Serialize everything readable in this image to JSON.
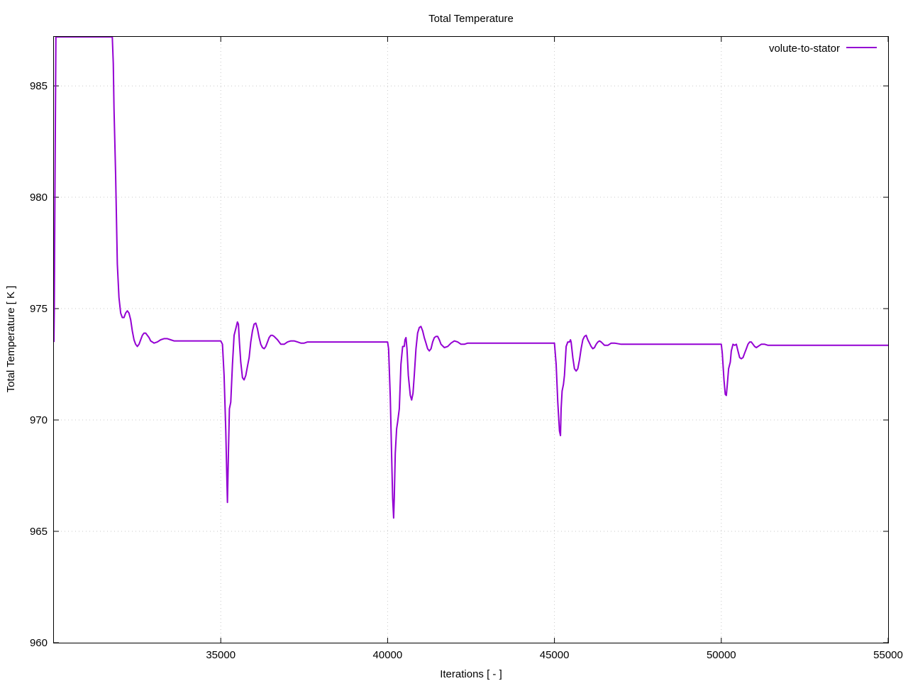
{
  "chart_data": {
    "type": "line",
    "title": "Total Temperature",
    "xlabel": "Iterations [ - ]",
    "ylabel": "Total Temperature [ K ]",
    "xlim": [
      30000,
      55000
    ],
    "ylim": [
      960,
      987.2
    ],
    "x_ticks": [
      35000,
      40000,
      45000,
      50000,
      55000
    ],
    "y_ticks": [
      960,
      965,
      970,
      975,
      980,
      985
    ],
    "grid": true,
    "legend_position": "top-right",
    "series": [
      {
        "name": "volute-to-stator",
        "color": "#9400d3",
        "points": [
          [
            30000,
            973.5
          ],
          [
            30010,
            975
          ],
          [
            30030,
            980
          ],
          [
            30060,
            987.2
          ],
          [
            31750,
            987.2
          ],
          [
            31780,
            986
          ],
          [
            31800,
            984
          ],
          [
            31850,
            981
          ],
          [
            31900,
            977
          ],
          [
            31950,
            975.5
          ],
          [
            32000,
            974.8
          ],
          [
            32050,
            974.6
          ],
          [
            32100,
            974.6
          ],
          [
            32150,
            974.8
          ],
          [
            32200,
            974.9
          ],
          [
            32250,
            974.8
          ],
          [
            32300,
            974.5
          ],
          [
            32350,
            974.0
          ],
          [
            32400,
            973.6
          ],
          [
            32450,
            973.4
          ],
          [
            32500,
            973.3
          ],
          [
            32550,
            973.4
          ],
          [
            32600,
            973.6
          ],
          [
            32650,
            973.8
          ],
          [
            32700,
            973.9
          ],
          [
            32750,
            973.9
          ],
          [
            32800,
            973.8
          ],
          [
            32850,
            973.7
          ],
          [
            32900,
            973.55
          ],
          [
            32950,
            973.5
          ],
          [
            33000,
            973.45
          ],
          [
            33100,
            973.5
          ],
          [
            33200,
            973.6
          ],
          [
            33300,
            973.65
          ],
          [
            33400,
            973.65
          ],
          [
            33500,
            973.6
          ],
          [
            33600,
            973.55
          ],
          [
            33700,
            973.55
          ],
          [
            33800,
            973.55
          ],
          [
            34000,
            973.55
          ],
          [
            34500,
            973.55
          ],
          [
            35000,
            973.55
          ],
          [
            35050,
            973.4
          ],
          [
            35100,
            972.0
          ],
          [
            35150,
            969.5
          ],
          [
            35180,
            967.5
          ],
          [
            35200,
            966.3
          ],
          [
            35230,
            968.5
          ],
          [
            35260,
            970.5
          ],
          [
            35300,
            970.8
          ],
          [
            35350,
            972.5
          ],
          [
            35400,
            973.8
          ],
          [
            35450,
            974.1
          ],
          [
            35500,
            974.4
          ],
          [
            35530,
            974.3
          ],
          [
            35560,
            973.5
          ],
          [
            35600,
            972.6
          ],
          [
            35650,
            971.9
          ],
          [
            35700,
            971.8
          ],
          [
            35750,
            972.0
          ],
          [
            35800,
            972.4
          ],
          [
            35850,
            972.8
          ],
          [
            35900,
            973.5
          ],
          [
            35950,
            974.0
          ],
          [
            36000,
            974.3
          ],
          [
            36050,
            974.35
          ],
          [
            36100,
            974.1
          ],
          [
            36150,
            973.7
          ],
          [
            36200,
            973.4
          ],
          [
            36250,
            973.25
          ],
          [
            36300,
            973.2
          ],
          [
            36350,
            973.3
          ],
          [
            36400,
            973.5
          ],
          [
            36450,
            973.7
          ],
          [
            36500,
            973.8
          ],
          [
            36550,
            973.8
          ],
          [
            36600,
            973.75
          ],
          [
            36700,
            973.6
          ],
          [
            36800,
            973.4
          ],
          [
            36900,
            973.4
          ],
          [
            37000,
            973.5
          ],
          [
            37100,
            973.55
          ],
          [
            37200,
            973.55
          ],
          [
            37300,
            973.5
          ],
          [
            37400,
            973.45
          ],
          [
            37500,
            973.45
          ],
          [
            37600,
            973.5
          ],
          [
            38000,
            973.5
          ],
          [
            39000,
            973.5
          ],
          [
            40000,
            973.5
          ],
          [
            40030,
            973.2
          ],
          [
            40080,
            971.0
          ],
          [
            40120,
            968.5
          ],
          [
            40150,
            966.5
          ],
          [
            40180,
            965.6
          ],
          [
            40200,
            966.5
          ],
          [
            40230,
            968.5
          ],
          [
            40270,
            969.6
          ],
          [
            40300,
            969.9
          ],
          [
            40350,
            970.5
          ],
          [
            40400,
            972.5
          ],
          [
            40450,
            973.3
          ],
          [
            40500,
            973.3
          ],
          [
            40520,
            973.6
          ],
          [
            40550,
            973.7
          ],
          [
            40580,
            973.2
          ],
          [
            40620,
            972.0
          ],
          [
            40680,
            971.1
          ],
          [
            40720,
            970.9
          ],
          [
            40760,
            971.2
          ],
          [
            40800,
            972.0
          ],
          [
            40850,
            973.2
          ],
          [
            40900,
            973.9
          ],
          [
            40950,
            974.15
          ],
          [
            41000,
            974.2
          ],
          [
            41050,
            974.0
          ],
          [
            41100,
            973.7
          ],
          [
            41150,
            973.45
          ],
          [
            41200,
            973.2
          ],
          [
            41250,
            973.1
          ],
          [
            41300,
            973.2
          ],
          [
            41350,
            973.5
          ],
          [
            41400,
            973.7
          ],
          [
            41450,
            973.75
          ],
          [
            41500,
            973.75
          ],
          [
            41550,
            973.6
          ],
          [
            41600,
            973.4
          ],
          [
            41700,
            973.25
          ],
          [
            41800,
            973.3
          ],
          [
            41900,
            973.45
          ],
          [
            42000,
            973.55
          ],
          [
            42100,
            973.5
          ],
          [
            42200,
            973.4
          ],
          [
            42300,
            973.4
          ],
          [
            42400,
            973.45
          ],
          [
            42600,
            973.45
          ],
          [
            43000,
            973.45
          ],
          [
            44000,
            973.45
          ],
          [
            45000,
            973.45
          ],
          [
            45050,
            972.5
          ],
          [
            45100,
            970.8
          ],
          [
            45150,
            969.5
          ],
          [
            45180,
            969.3
          ],
          [
            45200,
            970.5
          ],
          [
            45230,
            971.3
          ],
          [
            45270,
            971.6
          ],
          [
            45300,
            972.0
          ],
          [
            45350,
            973.3
          ],
          [
            45400,
            973.5
          ],
          [
            45450,
            973.5
          ],
          [
            45480,
            973.6
          ],
          [
            45500,
            973.5
          ],
          [
            45550,
            972.8
          ],
          [
            45600,
            972.3
          ],
          [
            45650,
            972.2
          ],
          [
            45700,
            972.3
          ],
          [
            45750,
            972.7
          ],
          [
            45800,
            973.2
          ],
          [
            45850,
            973.6
          ],
          [
            45900,
            973.75
          ],
          [
            45950,
            973.8
          ],
          [
            46000,
            973.6
          ],
          [
            46050,
            973.45
          ],
          [
            46100,
            973.3
          ],
          [
            46150,
            973.2
          ],
          [
            46200,
            973.25
          ],
          [
            46250,
            973.4
          ],
          [
            46300,
            973.5
          ],
          [
            46350,
            973.55
          ],
          [
            46400,
            973.5
          ],
          [
            46500,
            973.35
          ],
          [
            46600,
            973.35
          ],
          [
            46700,
            973.45
          ],
          [
            46800,
            973.45
          ],
          [
            47000,
            973.4
          ],
          [
            47200,
            973.4
          ],
          [
            47500,
            973.4
          ],
          [
            48000,
            973.4
          ],
          [
            49000,
            973.4
          ],
          [
            50000,
            973.4
          ],
          [
            50030,
            973.0
          ],
          [
            50080,
            971.8
          ],
          [
            50120,
            971.15
          ],
          [
            50150,
            971.1
          ],
          [
            50180,
            971.6
          ],
          [
            50220,
            972.3
          ],
          [
            50270,
            972.6
          ],
          [
            50300,
            973.1
          ],
          [
            50350,
            973.4
          ],
          [
            50400,
            973.35
          ],
          [
            50450,
            973.4
          ],
          [
            50500,
            973.1
          ],
          [
            50550,
            972.8
          ],
          [
            50600,
            972.75
          ],
          [
            50650,
            972.8
          ],
          [
            50700,
            973.0
          ],
          [
            50750,
            973.2
          ],
          [
            50800,
            973.4
          ],
          [
            50850,
            973.5
          ],
          [
            50900,
            973.5
          ],
          [
            50950,
            973.4
          ],
          [
            51000,
            973.3
          ],
          [
            51050,
            973.25
          ],
          [
            51100,
            973.3
          ],
          [
            51150,
            973.35
          ],
          [
            51200,
            973.4
          ],
          [
            51300,
            973.4
          ],
          [
            51400,
            973.35
          ],
          [
            51500,
            973.35
          ],
          [
            51700,
            973.35
          ],
          [
            52000,
            973.35
          ],
          [
            53000,
            973.35
          ],
          [
            54000,
            973.35
          ],
          [
            55000,
            973.35
          ]
        ]
      }
    ]
  }
}
